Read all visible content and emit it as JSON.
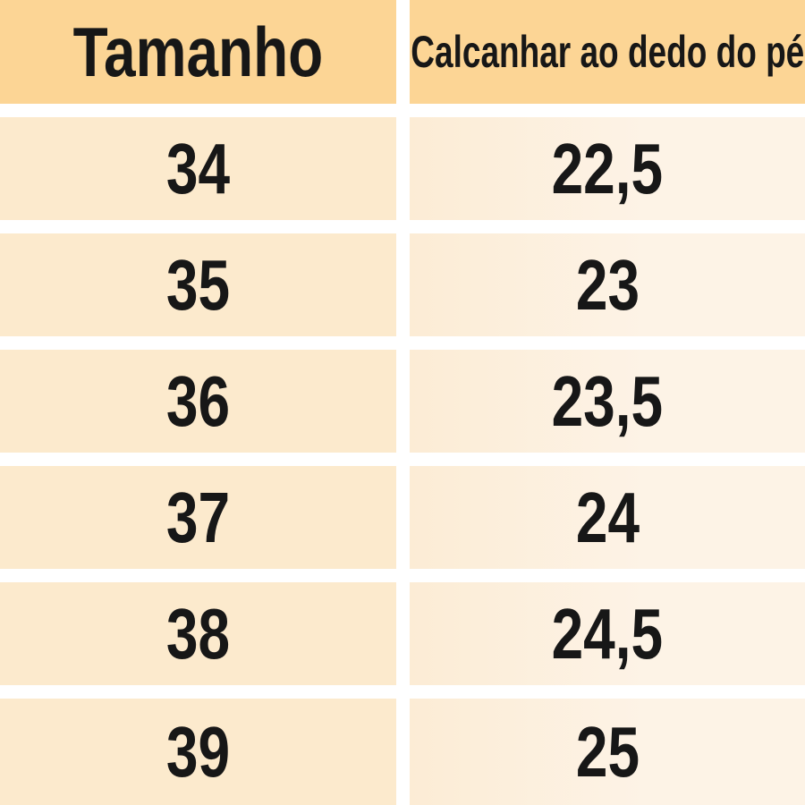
{
  "chart_data": {
    "type": "table",
    "columns": [
      "Tamanho",
      "Calcanhar ao dedo do pé"
    ],
    "rows": [
      [
        "34",
        "22,5"
      ],
      [
        "35",
        "23"
      ],
      [
        "36",
        "23,5"
      ],
      [
        "37",
        "24"
      ],
      [
        "38",
        "24,5"
      ],
      [
        "39",
        "25"
      ]
    ]
  },
  "colors": {
    "header_bg": "#FCD595",
    "size_column_bg": "#FCEACD",
    "measure_column_bg": "#FDF2E3",
    "gap": "#FFFFFF",
    "text": "#171717"
  }
}
